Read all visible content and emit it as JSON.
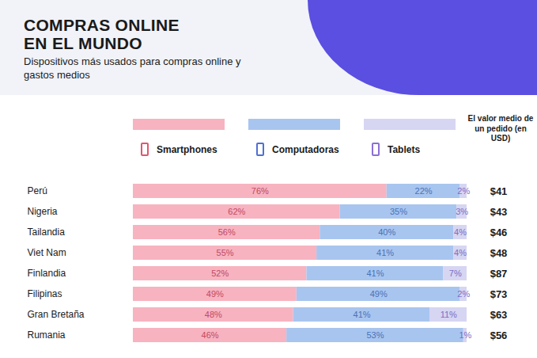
{
  "chart_data": {
    "type": "bar",
    "title": "COMPRAS ONLINE EN EL MUNDO",
    "subtitle": "Dispositivos más usados para compras online y gastos medios",
    "categories": [
      "Perú",
      "Nigeria",
      "Tailandia",
      "Viet Nam",
      "Finlandia",
      "Filipinas",
      "Gran Bretaña",
      "Rumania"
    ],
    "series": [
      {
        "name": "Smartphones",
        "color": "#f7b3c0",
        "values": [
          76,
          62,
          56,
          55,
          52,
          49,
          48,
          46
        ],
        "value_labels": [
          "76%",
          "62%",
          "56%",
          "55%",
          "52%",
          "49%",
          "48%",
          "46%"
        ]
      },
      {
        "name": "Computadoras",
        "color": "#a8c5ef",
        "values": [
          22,
          35,
          40,
          41,
          41,
          49,
          41,
          53
        ],
        "value_labels": [
          "22%",
          "35%",
          "40%",
          "41%",
          "41%",
          "49%",
          "41%",
          "53%"
        ]
      },
      {
        "name": "Tablets",
        "color": "#d6d5f2",
        "values": [
          2,
          3,
          4,
          4,
          7,
          2,
          11,
          1
        ],
        "value_labels": [
          "2%",
          "3%",
          "4%",
          "4%",
          "7%",
          "2%",
          "11%",
          "1%"
        ]
      }
    ],
    "orientation": "horizontal",
    "stacked": true,
    "data_labels": true,
    "legend": "top",
    "tick_labels": "y",
    "xlim": [
      0,
      100
    ],
    "order_value": {
      "label": "El valor medio de un pedido (en USD)",
      "values": [
        41,
        43,
        46,
        48,
        87,
        73,
        63,
        56
      ],
      "value_labels": [
        "$41",
        "$43",
        "$46",
        "$48",
        "$87",
        "$73",
        "$63",
        "$56"
      ]
    }
  }
}
